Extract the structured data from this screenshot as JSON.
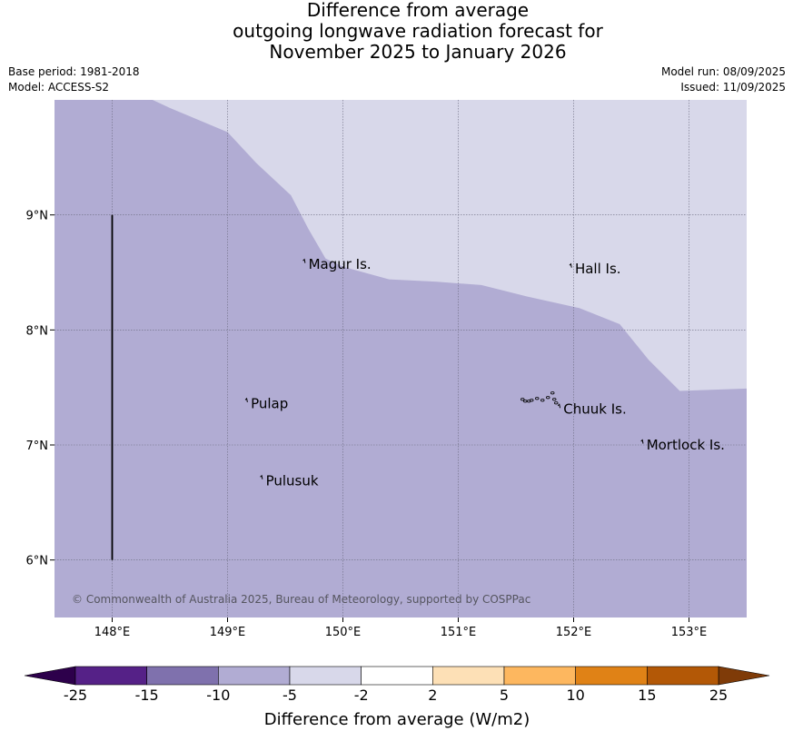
{
  "title": {
    "line1": "Difference from average",
    "line2": "outgoing longwave radiation forecast for",
    "line3": "November 2025 to January 2026"
  },
  "meta": {
    "base_period": "Base period: 1981-2018",
    "model": "Model: ACCESS-S2",
    "model_run": "Model run: 08/09/2025",
    "issued": "Issued: 11/09/2025"
  },
  "map": {
    "lon_range": [
      147.5,
      153.5
    ],
    "lat_range": [
      5.5,
      10.0
    ],
    "grid": true,
    "lon_ticks": [
      {
        "value": 148,
        "label": "148°E"
      },
      {
        "value": 149,
        "label": "149°E"
      },
      {
        "value": 150,
        "label": "150°E"
      },
      {
        "value": 151,
        "label": "151°E"
      },
      {
        "value": 152,
        "label": "152°E"
      },
      {
        "value": 153,
        "label": "153°E"
      }
    ],
    "lat_ticks": [
      {
        "value": 9,
        "label": "9°N"
      },
      {
        "value": 8,
        "label": "8°N"
      },
      {
        "value": 7,
        "label": "7°N"
      },
      {
        "value": 6,
        "label": "6°N"
      }
    ],
    "fill_main": "#b1acd3",
    "fill_upper": "#d8d8ea",
    "boundary": [
      [
        148.35,
        10.0
      ],
      [
        148.5,
        9.93
      ],
      [
        149.0,
        9.72
      ],
      [
        149.25,
        9.45
      ],
      [
        149.55,
        9.17
      ],
      [
        149.7,
        8.88
      ],
      [
        149.85,
        8.62
      ],
      [
        150.0,
        8.55
      ],
      [
        150.4,
        8.44
      ],
      [
        150.8,
        8.42
      ],
      [
        151.2,
        8.39
      ],
      [
        151.6,
        8.29
      ],
      [
        152.05,
        8.19
      ],
      [
        152.4,
        8.05
      ],
      [
        152.65,
        7.74
      ],
      [
        152.92,
        7.47
      ],
      [
        153.5,
        7.49
      ]
    ],
    "places": [
      {
        "name": "Magur Is.",
        "lon": 149.67,
        "lat": 8.57
      },
      {
        "name": "Hall Is.",
        "lon": 151.98,
        "lat": 8.53
      },
      {
        "name": "Pulap",
        "lon": 149.17,
        "lat": 7.36
      },
      {
        "name": "Chuuk Is.",
        "lon": 151.88,
        "lat": 7.31
      },
      {
        "name": "Mortlock Is.",
        "lon": 152.6,
        "lat": 7.0
      },
      {
        "name": "Pulusuk",
        "lon": 149.3,
        "lat": 6.69
      }
    ],
    "meridian_line": {
      "lon": 148.0,
      "lat_from": 6.0,
      "lat_to": 9.0
    },
    "copyright": "© Commonwealth of Australia 2025, Bureau of Meteorology, supported by COSPPac"
  },
  "colorbar": {
    "label": "Difference from average (W/m2)",
    "ticks": [
      "-25",
      "-15",
      "-10",
      "-5",
      "-2",
      "2",
      "5",
      "10",
      "15",
      "25"
    ],
    "colors": [
      "#552187",
      "#7f71ad",
      "#b1acd3",
      "#d8d8ea",
      "#ffffff",
      "#fde0b6",
      "#fdb75f",
      "#e08216",
      "#b35806"
    ],
    "extend_low": "#2d004b",
    "extend_high": "#7f3b08"
  }
}
